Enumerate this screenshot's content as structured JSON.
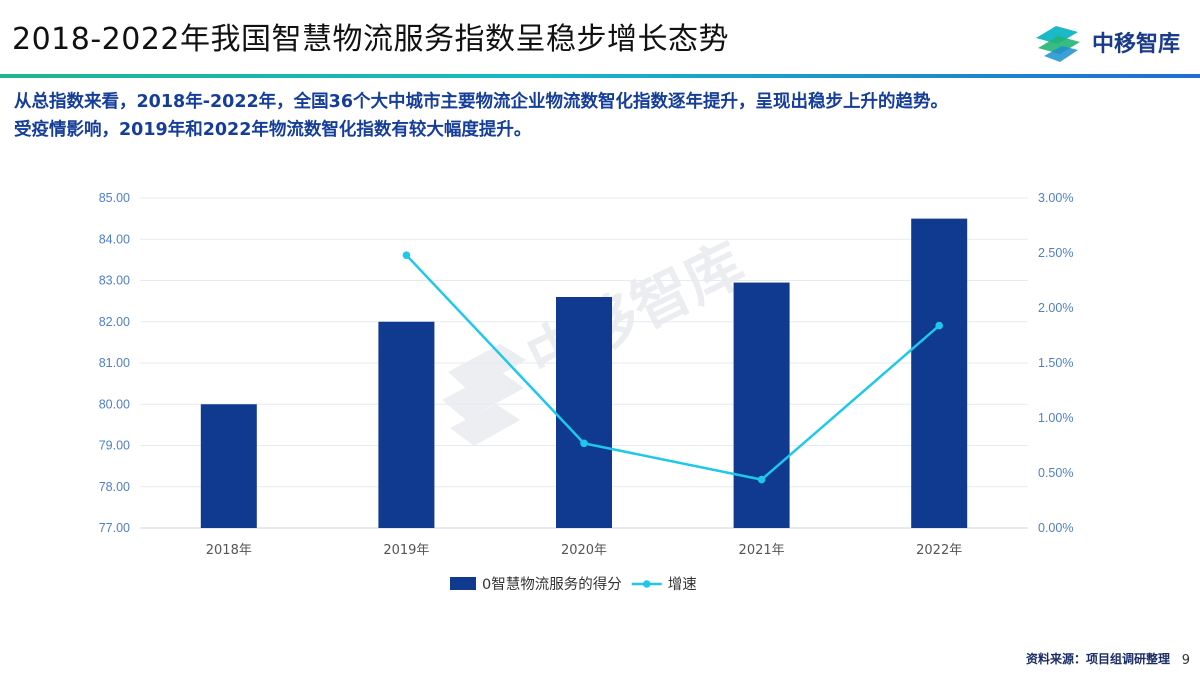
{
  "header": {
    "title": "2018-2022年我国智慧物流服务指数呈稳步增长态势",
    "brand": "中移智库"
  },
  "summary": {
    "line1": "从总指数来看，2018年-2022年，全国36个大中城市主要物流企业物流数智化指数逐年提升，呈现出稳步上升的趋势。",
    "line2": "受疫情影响，2019年和2022年物流数智化指数有较大幅度提升。"
  },
  "chart_data": {
    "type": "bar",
    "categories": [
      "2018年",
      "2019年",
      "2020年",
      "2021年",
      "2022年"
    ],
    "series": [
      {
        "name": "0智慧物流服务的得分",
        "type": "bar",
        "axis": "left",
        "values": [
          80.0,
          82.0,
          82.6,
          82.95,
          84.5
        ],
        "color": "#0f3a8f"
      },
      {
        "name": "增速",
        "type": "line",
        "axis": "right",
        "values": [
          null,
          2.48,
          0.77,
          0.44,
          1.84
        ],
        "color": "#1ec8ea"
      }
    ],
    "y_left": {
      "min": 77.0,
      "max": 85.0,
      "ticks": [
        "77.00",
        "78.00",
        "79.00",
        "80.00",
        "81.00",
        "82.00",
        "83.00",
        "84.00",
        "85.00"
      ]
    },
    "y_right": {
      "min": 0,
      "max": 3.0,
      "ticks": [
        "0.00%",
        "0.50%",
        "1.00%",
        "1.50%",
        "2.00%",
        "2.50%",
        "3.00%"
      ]
    },
    "grid": true,
    "legend": "bottom"
  },
  "watermark": "中移智库",
  "footer": {
    "source": "资料来源：项目组调研整理",
    "page": "9"
  },
  "colors": {
    "title_rule_start": "#1fb58f",
    "title_rule_end": "#1f6dd0",
    "summary_text": "#153d9a",
    "axis_tick_text": "#4f7fc8"
  }
}
